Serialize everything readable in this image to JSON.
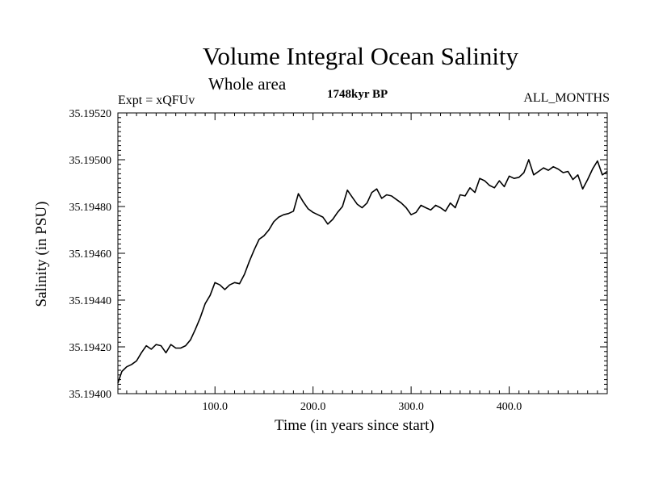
{
  "chart_data": {
    "type": "line",
    "title": "Volume Integral Ocean Salinity",
    "subtitle": "Whole area",
    "annotations": {
      "left": "Expt = xQFUv",
      "center": "1748kyr BP",
      "right": "ALL_MONTHS"
    },
    "xlabel": "Time (in years since start)",
    "ylabel": "Salinity (in PSU)",
    "xlim": [
      1,
      500
    ],
    "ylim": [
      35.194,
      35.1952
    ],
    "xticks": [
      100,
      200,
      300,
      400
    ],
    "xtick_labels": [
      "100.0",
      "200.0",
      "300.0",
      "400.0"
    ],
    "yticks": [
      35.194,
      35.1942,
      35.1944,
      35.1946,
      35.1948,
      35.195,
      35.1952
    ],
    "ytick_labels": [
      "35.19400",
      "35.19420",
      "35.19440",
      "35.19460",
      "35.19480",
      "35.19500",
      "35.19520"
    ],
    "grid": false,
    "series": [
      {
        "name": "Salinity",
        "color": "#000000",
        "x": [
          1,
          5,
          10,
          15,
          20,
          25,
          30,
          35,
          40,
          45,
          50,
          55,
          60,
          65,
          70,
          75,
          80,
          85,
          90,
          95,
          100,
          105,
          110,
          115,
          120,
          125,
          130,
          135,
          140,
          145,
          150,
          155,
          160,
          165,
          170,
          175,
          180,
          185,
          190,
          195,
          200,
          205,
          210,
          215,
          220,
          225,
          230,
          235,
          240,
          245,
          250,
          255,
          260,
          265,
          270,
          275,
          280,
          285,
          290,
          295,
          300,
          305,
          310,
          315,
          320,
          325,
          330,
          335,
          340,
          345,
          350,
          355,
          360,
          365,
          370,
          375,
          380,
          385,
          390,
          395,
          400,
          405,
          410,
          415,
          420,
          425,
          430,
          435,
          440,
          445,
          450,
          455,
          460,
          465,
          470,
          475,
          480,
          485,
          490,
          495,
          500
        ],
        "y": [
          35.194045,
          35.194095,
          35.194115,
          35.194125,
          35.19414,
          35.194175,
          35.194205,
          35.19419,
          35.19421,
          35.194205,
          35.194175,
          35.19421,
          35.194195,
          35.194195,
          35.194205,
          35.19423,
          35.194275,
          35.194325,
          35.194385,
          35.19442,
          35.194475,
          35.194465,
          35.194445,
          35.194465,
          35.194475,
          35.19447,
          35.19451,
          35.194565,
          35.194615,
          35.19466,
          35.194675,
          35.1947,
          35.194735,
          35.194755,
          35.194765,
          35.19477,
          35.19478,
          35.194855,
          35.19482,
          35.19479,
          35.194775,
          35.194765,
          35.194755,
          35.194725,
          35.194745,
          35.194775,
          35.1948,
          35.19487,
          35.19484,
          35.19481,
          35.194795,
          35.194815,
          35.19486,
          35.194875,
          35.194835,
          35.19485,
          35.194845,
          35.19483,
          35.194815,
          35.194795,
          35.194765,
          35.194775,
          35.194805,
          35.194795,
          35.194785,
          35.194805,
          35.194795,
          35.19478,
          35.194815,
          35.194795,
          35.19485,
          35.194845,
          35.19488,
          35.19486,
          35.19492,
          35.19491,
          35.19489,
          35.19488,
          35.19491,
          35.194885,
          35.19493,
          35.19492,
          35.194925,
          35.194945,
          35.195,
          35.194935,
          35.19495,
          35.194965,
          35.194955,
          35.19497,
          35.19496,
          35.194945,
          35.19495,
          35.194915,
          35.194935,
          35.194875,
          35.194915,
          35.19496,
          35.194995,
          35.194935,
          35.19495
        ]
      }
    ]
  }
}
